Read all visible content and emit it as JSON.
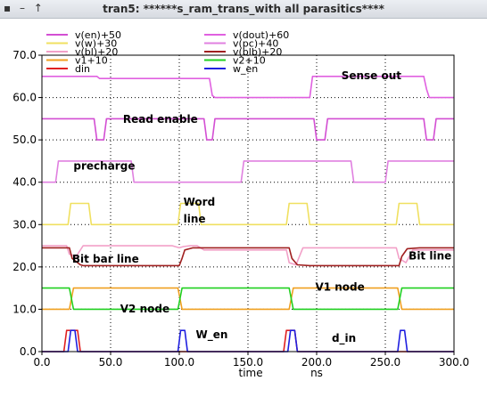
{
  "window": {
    "title": "tran5: ******s_ram_trans_with all parasitics****",
    "controls": [
      "▪",
      "–",
      "↑"
    ]
  },
  "chart_data": {
    "type": "line",
    "title": "",
    "xlabel": "time",
    "xunit": "ns",
    "ylabel": "",
    "xlim": [
      0,
      300
    ],
    "ylim": [
      0,
      70
    ],
    "xticks": [
      0,
      50,
      100,
      150,
      200,
      250,
      300
    ],
    "xtick_labels": [
      "0.0",
      "50.0",
      "100.0",
      "150.0",
      "200.0",
      "250.0",
      "300.0"
    ],
    "yticks": [
      0,
      10,
      20,
      30,
      40,
      50,
      60,
      70
    ],
    "ytick_labels": [
      "0.0",
      "10.0",
      "20.0",
      "30.0",
      "40.0",
      "50.0",
      "60.0",
      "70.0"
    ],
    "grid": "dotted",
    "legend_position": "top",
    "series": [
      {
        "name": "v(en)+50",
        "color": "#d34fd3",
        "x": [
          0,
          38,
          40,
          45,
          47,
          118,
          120,
          124,
          126,
          198,
          200,
          206,
          208,
          278,
          280,
          285,
          287,
          300
        ],
        "y": [
          55,
          55,
          50,
          50,
          55,
          55,
          50,
          50,
          55,
          55,
          50,
          50,
          55,
          55,
          50,
          50,
          55,
          55
        ]
      },
      {
        "name": "v(dout)+60",
        "color": "#e060e0",
        "x": [
          0,
          40,
          42,
          120,
          122,
          124,
          126,
          195,
          197,
          200,
          278,
          280,
          282,
          300
        ],
        "y": [
          65,
          65,
          64.5,
          64.5,
          64.5,
          60.5,
          60,
          60,
          65,
          65,
          65,
          62,
          60,
          60
        ]
      },
      {
        "name": "v(w)+30",
        "color": "#f0e060",
        "x": [
          0,
          19,
          21,
          34,
          36,
          99,
          101,
          114,
          116,
          178,
          180,
          193,
          195,
          258,
          260,
          273,
          275,
          300
        ],
        "y": [
          30,
          30,
          35,
          35,
          30,
          30,
          35,
          35,
          30,
          30,
          35,
          35,
          30,
          30,
          35,
          35,
          30,
          30
        ]
      },
      {
        "name": "v(pc)+40",
        "color": "#e080e0",
        "x": [
          0,
          10,
          12,
          65,
          67,
          90,
          92,
          145,
          147,
          170,
          172,
          225,
          227,
          250,
          252,
          300
        ],
        "y": [
          40,
          40,
          45,
          45,
          40,
          40,
          40,
          40,
          45,
          45,
          45,
          45,
          40,
          40,
          45,
          45
        ]
      },
      {
        "name": "v(bl)+20",
        "color": "#f2a0c8",
        "x": [
          0,
          18,
          20,
          25,
          30,
          95,
          100,
          103,
          108,
          113,
          118,
          178,
          180,
          185,
          190,
          258,
          260,
          265,
          270,
          300
        ],
        "y": [
          25,
          25,
          23,
          22.5,
          25,
          25,
          24.5,
          24.8,
          25,
          25,
          24,
          24,
          21,
          20.5,
          24.5,
          24.5,
          22,
          21,
          24,
          24
        ]
      },
      {
        "name": "v(blb)+20",
        "color": "#a02020",
        "x": [
          0,
          20,
          22,
          28,
          30,
          40,
          45,
          60,
          100,
          102,
          104,
          110,
          120,
          125,
          180,
          182,
          186,
          195,
          200,
          260,
          262,
          266,
          275,
          280,
          300
        ],
        "y": [
          24.5,
          24.5,
          22,
          20.5,
          20.3,
          20.3,
          20.3,
          20.3,
          20.3,
          22,
          24,
          24.5,
          24.5,
          24.5,
          24.5,
          22,
          20.5,
          20.3,
          20.3,
          20.3,
          22.5,
          24.3,
          24.5,
          24.5,
          24.5
        ]
      },
      {
        "name": "v1+10",
        "color": "#f0a020",
        "x": [
          0,
          20,
          23,
          99,
          102,
          180,
          183,
          259,
          262,
          300
        ],
        "y": [
          10,
          10,
          15,
          15,
          10,
          10,
          15,
          15,
          10,
          10
        ]
      },
      {
        "name": "v2+10",
        "color": "#20d020",
        "x": [
          0,
          20,
          23,
          99,
          102,
          180,
          183,
          259,
          262,
          300
        ],
        "y": [
          15,
          15,
          10,
          10,
          15,
          15,
          10,
          10,
          15,
          15
        ]
      },
      {
        "name": "din",
        "color": "#e02020",
        "x": [
          0,
          16,
          18,
          26,
          28,
          176,
          178,
          184,
          186,
          300
        ],
        "y": [
          0,
          0,
          5,
          5,
          0,
          0,
          5,
          5,
          0,
          0
        ]
      },
      {
        "name": "w_en",
        "color": "#2020e0",
        "x": [
          0,
          19,
          21,
          24,
          26,
          99,
          101,
          104,
          106,
          179,
          181,
          184,
          186,
          259,
          261,
          264,
          266,
          300
        ],
        "y": [
          0,
          0,
          5,
          5,
          0,
          0,
          5,
          5,
          0,
          0,
          5,
          5,
          0,
          0,
          5,
          5,
          0,
          0
        ]
      }
    ],
    "annotations": [
      {
        "text": "Sense out",
        "x": 218,
        "y": 64.3
      },
      {
        "text": "Read enable",
        "x": 59,
        "y": 54
      },
      {
        "text": "precharge",
        "x": 23,
        "y": 43
      },
      {
        "text": "Word",
        "x": 103,
        "y": 34.5
      },
      {
        "text": "line",
        "x": 103,
        "y": 30.5
      },
      {
        "text": "Bit bar line",
        "x": 22,
        "y": 21
      },
      {
        "text": "Bit line",
        "x": 267,
        "y": 21.8
      },
      {
        "text": "V1 node",
        "x": 199,
        "y": 14.4
      },
      {
        "text": "V2 node",
        "x": 57,
        "y": 9.2
      },
      {
        "text": "W_en",
        "x": 112,
        "y": 3.2
      },
      {
        "text": "d_in",
        "x": 211,
        "y": 2.3
      }
    ]
  }
}
